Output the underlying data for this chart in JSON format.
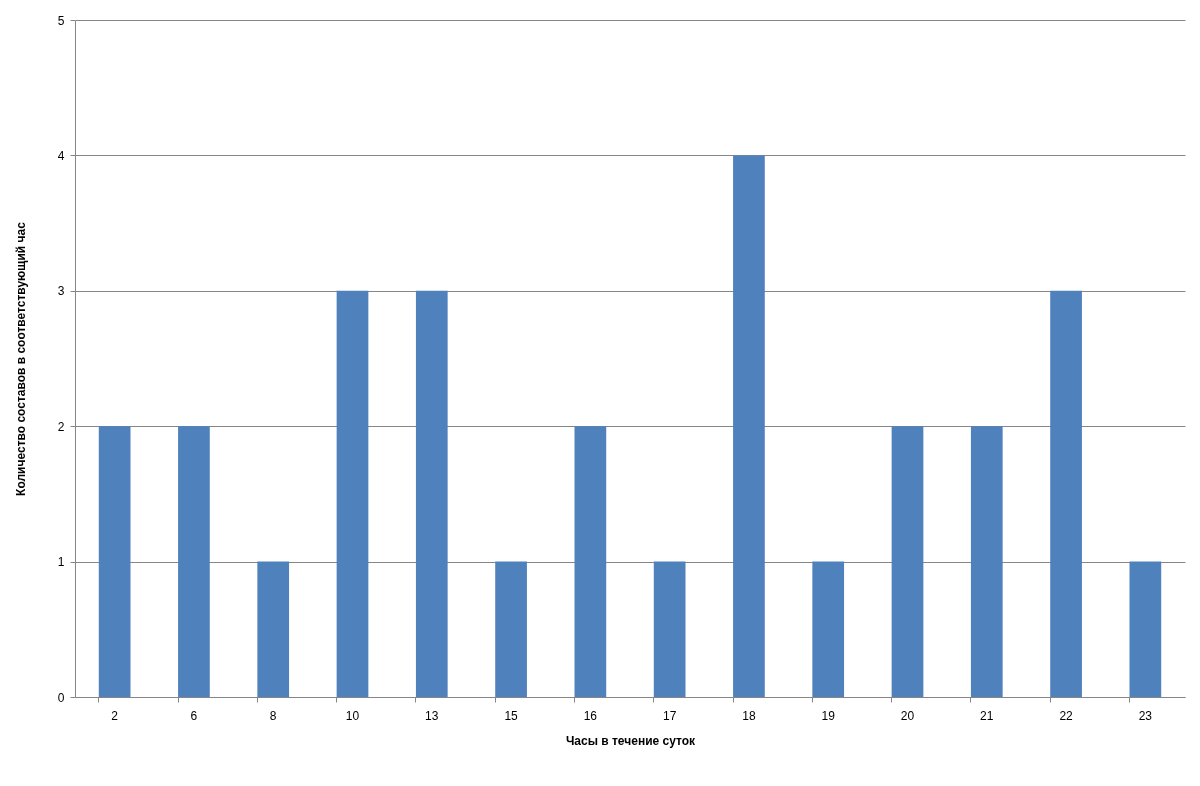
{
  "chart_data": {
    "type": "bar",
    "xlabel": "Часы в течение суток",
    "ylabel": "Количество составов в соответствующий час",
    "categories": [
      "2",
      "6",
      "8",
      "10",
      "13",
      "15",
      "16",
      "17",
      "18",
      "19",
      "20",
      "21",
      "22",
      "23"
    ],
    "values": [
      2,
      2,
      1,
      3,
      3,
      1,
      2,
      1,
      4,
      1,
      2,
      2,
      3,
      1
    ],
    "color": "#4f81bd",
    "ylim": [
      0,
      5
    ],
    "yticks": [
      0,
      1,
      2,
      3,
      4,
      5
    ],
    "grid": "y"
  }
}
